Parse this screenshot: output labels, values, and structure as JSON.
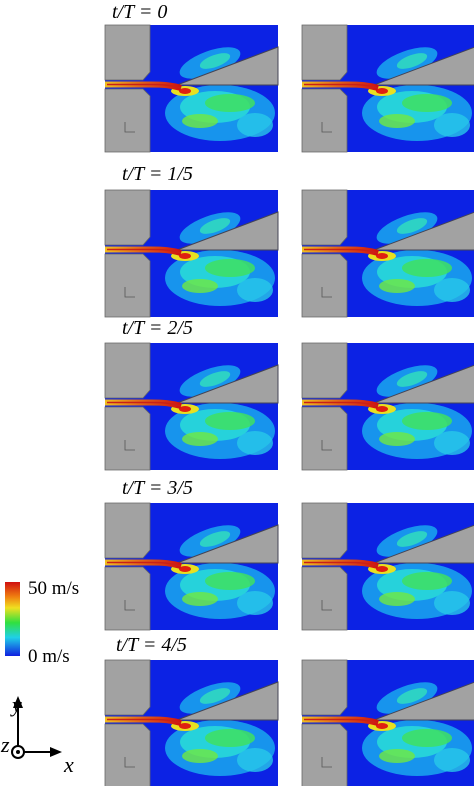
{
  "panels": [
    {
      "label": "t/T = 0"
    },
    {
      "label": "t/T = 1/5"
    },
    {
      "label": "t/T = 2/5"
    },
    {
      "label": "t/T = 3/5"
    },
    {
      "label": "t/T = 4/5"
    }
  ],
  "colorbar": {
    "max_label": "50 m/s",
    "min_label": "0 m/s"
  },
  "axes": {
    "x": "x",
    "y": "y",
    "z": "z"
  }
}
